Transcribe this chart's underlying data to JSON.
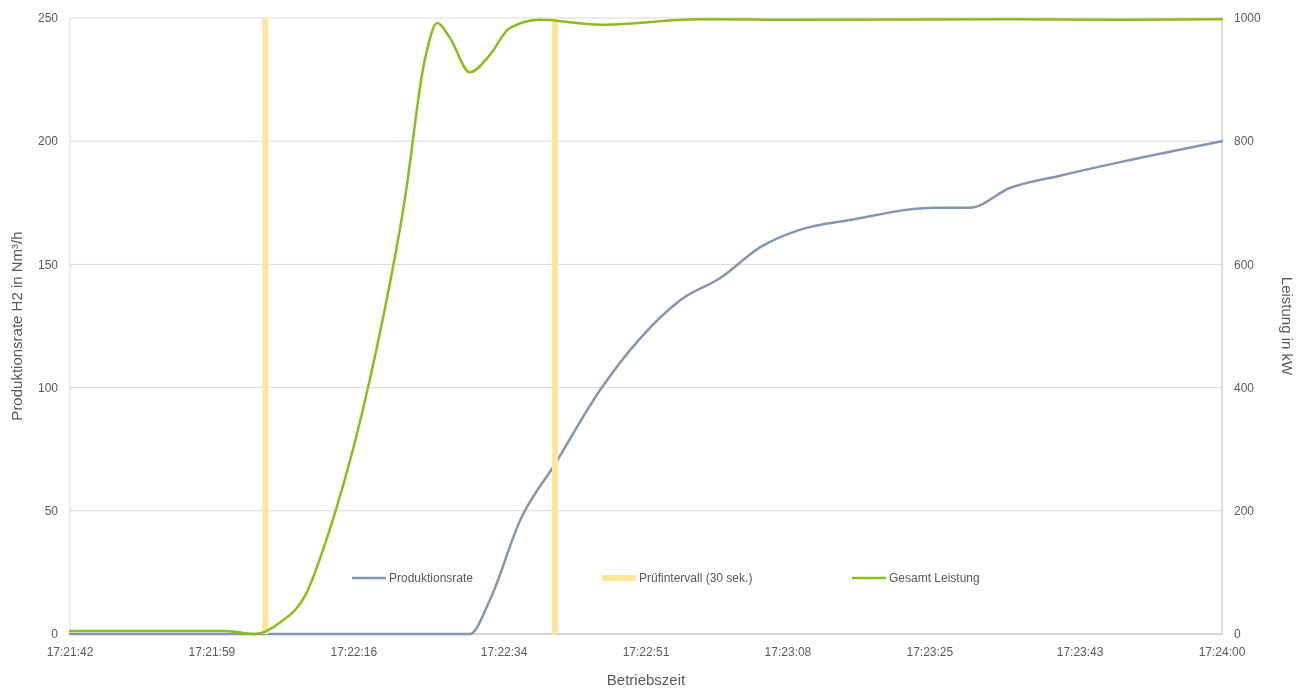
{
  "chart_data": {
    "type": "line",
    "xlabel": "Betriebszeit",
    "ylabel": "Produktionsrate H2  in Nm³/h",
    "y2label": "Leistung in kW",
    "xlim": [
      17.361667,
      17.4
    ],
    "xticks": [
      {
        "value": 17.361667,
        "label": "17:21:42"
      },
      {
        "value": 17.366389,
        "label": "17:21:59"
      },
      {
        "value": 17.371111,
        "label": "17:22:16"
      },
      {
        "value": 17.376111,
        "label": "17:22:34"
      },
      {
        "value": 17.380833,
        "label": "17:22:51"
      },
      {
        "value": 17.385556,
        "label": "17:23:08"
      },
      {
        "value": 17.390278,
        "label": "17:23:25"
      },
      {
        "value": 17.395278,
        "label": "17:23:43"
      },
      {
        "value": 17.4,
        "label": "17:24:00"
      }
    ],
    "ylim": [
      0,
      250
    ],
    "yticks": [
      0,
      50,
      100,
      150,
      200,
      250
    ],
    "y2lim": [
      0,
      1000
    ],
    "y2ticks": [
      0,
      200,
      400,
      600,
      800,
      1000
    ],
    "grid": "y",
    "legend": "bottom",
    "marker": "none",
    "line_style": "solid",
    "series": [
      {
        "name": "Produktionsrate",
        "color": "#8497b0",
        "x": [
          17.361667,
          17.372806,
          17.374972,
          17.375639,
          17.376639,
          17.377806,
          17.379306,
          17.380639,
          17.381972,
          17.383306,
          17.384639,
          17.385944,
          17.387611,
          17.390444,
          17.391611,
          17.392944,
          17.394611,
          17.396611,
          17.4
        ],
        "values": [
          0,
          0,
          0,
          13.8,
          46,
          69,
          99,
          120,
          135.5,
          144.5,
          157,
          164,
          168,
          173,
          173,
          181,
          186,
          191.5,
          200
        ]
      },
      {
        "name": "Prüfintervall (30 sek.)",
        "color": "#ffe699",
        "x": [
          17.368167,
          17.368167
        ],
        "values": [
          0,
          250
        ]
      },
      {
        "color": "#ffe699",
        "x": [
          17.377806,
          17.377806
        ],
        "values": [
          0,
          250
        ]
      },
      {
        "name": "Gesamt Leistung",
        "color": "#8cbd1f",
        "axis": "y2",
        "x": [
          17.361667,
          17.366833,
          17.367833,
          17.368667,
          17.3695,
          17.370306,
          17.371639,
          17.372806,
          17.373472,
          17.373889,
          17.374306,
          17.374972,
          17.375639,
          17.376306,
          17.377306,
          17.379306,
          17.382639,
          17.385944,
          17.392611,
          17.396306,
          17.4
        ],
        "values": [
          5,
          5,
          0,
          19,
          63,
          169,
          412,
          705,
          932,
          992,
          968,
          912,
          940,
          984,
          997,
          989,
          998,
          997,
          998,
          997,
          998
        ]
      }
    ]
  }
}
